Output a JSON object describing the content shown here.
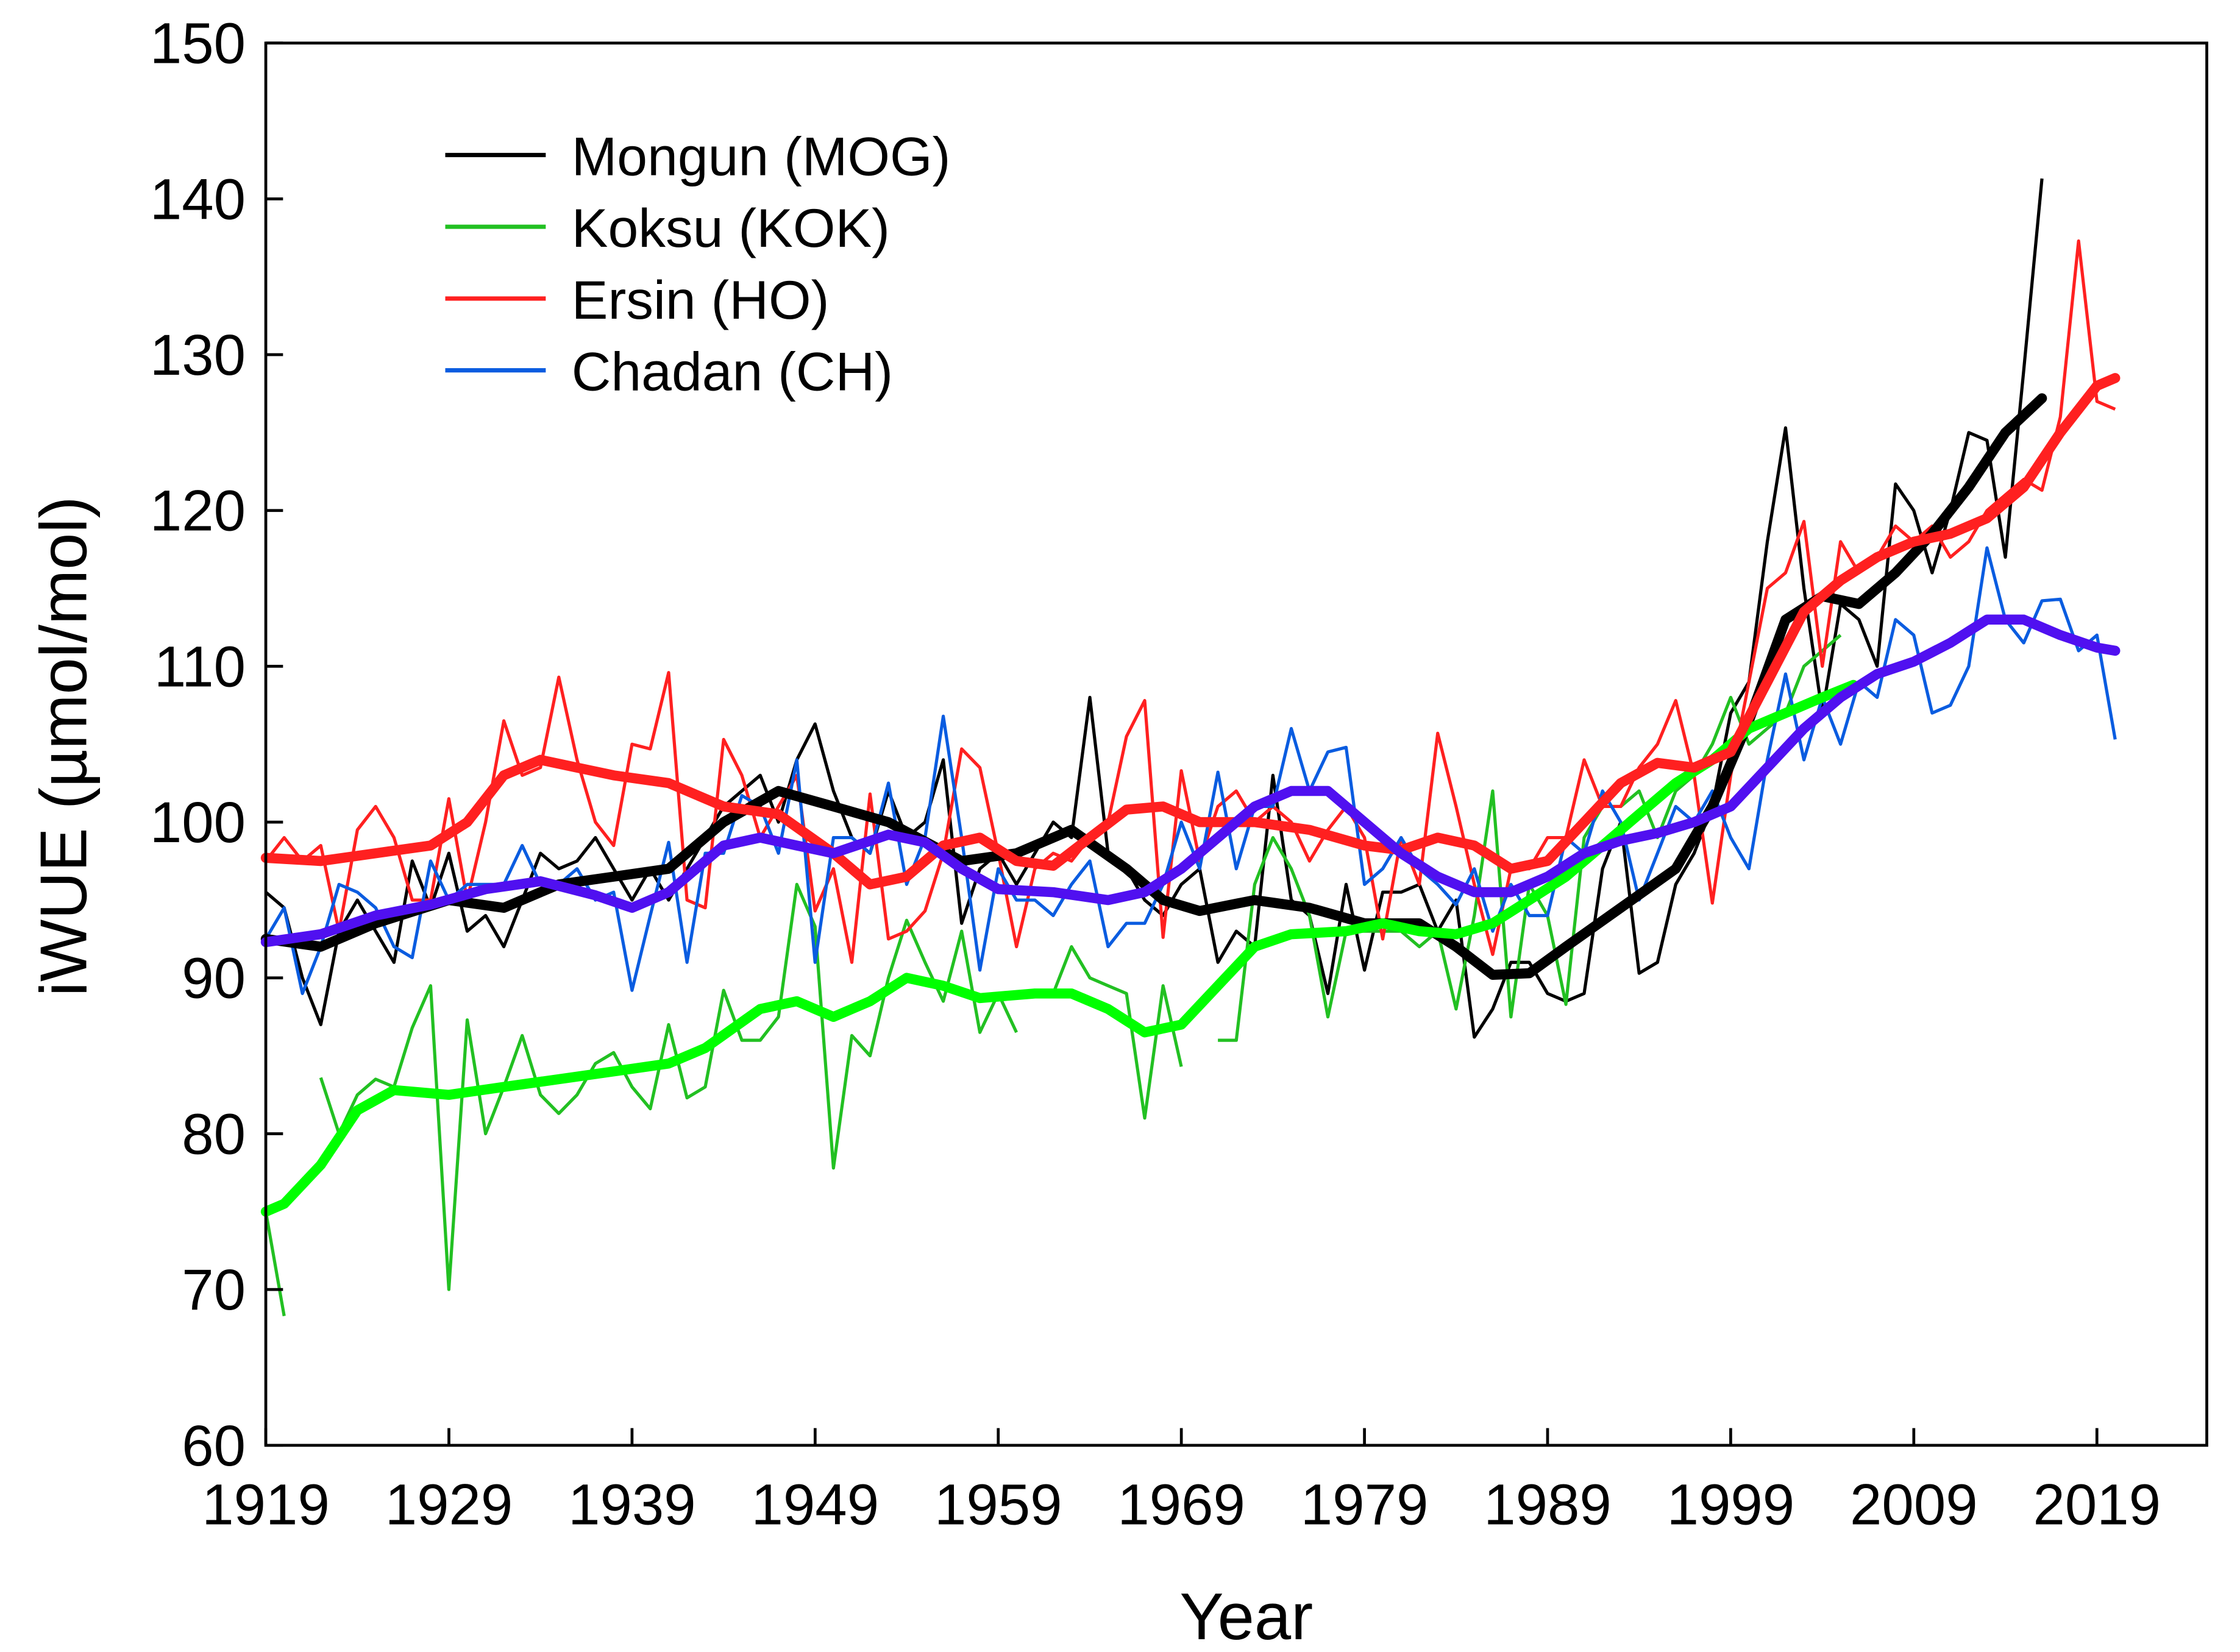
{
  "chart_data": {
    "type": "line",
    "title": "",
    "xlabel": "Year",
    "ylabel": "iWUE (µmol/mol)",
    "xlim": [
      1919,
      2025
    ],
    "ylim": [
      60,
      150
    ],
    "xticks": [
      1919,
      1929,
      1939,
      1949,
      1959,
      1969,
      1979,
      1989,
      1999,
      2009,
      2019
    ],
    "yticks": [
      60,
      70,
      80,
      90,
      100,
      110,
      120,
      130,
      140,
      150
    ],
    "grid": false,
    "legend_position": "top-left",
    "series": [
      {
        "name": "Mongun (MOG)",
        "color": "#000000",
        "smooth_color": "#000000",
        "start_year": 1919,
        "values": [
          95.5,
          94.5,
          90,
          87,
          93,
          95,
          93,
          91,
          97.5,
          94.5,
          98,
          93,
          94,
          92,
          95,
          98,
          97,
          97.5,
          99,
          97,
          95,
          97,
          95,
          97,
          99,
          101,
          102,
          103,
          100,
          104,
          106.3,
          102,
          99,
          98,
          102,
          99,
          100,
          104,
          93.5,
          97,
          98,
          96,
          98,
          100,
          99,
          108,
          98,
          97,
          95,
          94,
          96,
          97,
          91,
          93,
          92,
          103,
          95,
          94,
          89,
          96,
          90.5,
          95.5,
          95.5,
          96,
          93,
          95,
          86.2,
          88,
          91,
          91,
          89,
          88.5,
          89,
          97,
          100,
          90.3,
          91,
          96,
          98,
          101,
          107,
          109,
          118,
          125.3,
          115,
          107,
          114,
          113,
          110,
          121.7,
          120,
          116,
          120,
          125,
          124.5,
          117,
          129,
          141.3
        ],
        "smooth": [
          [
            1919,
            92.5
          ],
          [
            1922,
            92
          ],
          [
            1925,
            93.5
          ],
          [
            1929,
            95
          ],
          [
            1932,
            94.5
          ],
          [
            1935,
            96
          ],
          [
            1938,
            96.5
          ],
          [
            1941,
            97
          ],
          [
            1944,
            100
          ],
          [
            1947,
            102
          ],
          [
            1950,
            101
          ],
          [
            1953,
            100
          ],
          [
            1957,
            97.5
          ],
          [
            1960,
            98
          ],
          [
            1963,
            99.5
          ],
          [
            1966,
            97
          ],
          [
            1968,
            95
          ],
          [
            1970,
            94.3
          ],
          [
            1973,
            95
          ],
          [
            1976,
            94.5
          ],
          [
            1979,
            93.5
          ],
          [
            1982,
            93.5
          ],
          [
            1984,
            92
          ],
          [
            1986,
            90.2
          ],
          [
            1988,
            90.3
          ],
          [
            1990,
            92
          ],
          [
            1993,
            94.5
          ],
          [
            1996,
            97
          ],
          [
            1998,
            101
          ],
          [
            2000,
            106.5
          ],
          [
            2002,
            113
          ],
          [
            2004,
            114.5
          ],
          [
            2006,
            114
          ],
          [
            2008,
            116
          ],
          [
            2010,
            118.5
          ],
          [
            2012,
            121.5
          ],
          [
            2014,
            125
          ],
          [
            2016,
            127.2
          ]
        ]
      },
      {
        "name": "Koksu (KOK)",
        "color": "#22c022",
        "smooth_color": "#00ff00",
        "start_year": 1919,
        "values": [
          75,
          68.3,
          null,
          83.6,
          80,
          82.5,
          83.5,
          83,
          86.8,
          89.5,
          70,
          87.3,
          80,
          83,
          86.3,
          82.5,
          81.3,
          82.5,
          84.5,
          85.2,
          83,
          81.6,
          87,
          82.3,
          83,
          89.2,
          86,
          86,
          87.5,
          96,
          93.3,
          77.8,
          86.3,
          85,
          90,
          93.7,
          91,
          88.5,
          93,
          86.5,
          89,
          86.5,
          null,
          89,
          92,
          90,
          89.5,
          89,
          81,
          89.5,
          84.3,
          null,
          86,
          86,
          96,
          99,
          97,
          94,
          87.5,
          93,
          93,
          93,
          93,
          92,
          93,
          88,
          94,
          102,
          87.5,
          96,
          94,
          88.3,
          99,
          101,
          101,
          102,
          99,
          102,
          103,
          105,
          108,
          105,
          106,
          107,
          110,
          111,
          112
        ],
        "smooth": [
          [
            1919,
            75
          ],
          [
            1920,
            75.5
          ],
          [
            1922,
            78
          ],
          [
            1924,
            81.5
          ],
          [
            1926,
            82.8
          ],
          [
            1929,
            82.5
          ],
          [
            1932,
            83
          ],
          [
            1935,
            83.5
          ],
          [
            1938,
            84
          ],
          [
            1941,
            84.5
          ],
          [
            1943,
            85.5
          ],
          [
            1946,
            88
          ],
          [
            1948,
            88.5
          ],
          [
            1950,
            87.5
          ],
          [
            1952,
            88.5
          ],
          [
            1954,
            90
          ],
          [
            1956,
            89.5
          ],
          [
            1958,
            88.7
          ],
          [
            1961,
            89
          ],
          [
            1963,
            89
          ],
          [
            1965,
            88
          ],
          [
            1967,
            86.5
          ],
          [
            1969,
            87
          ],
          [
            1971,
            89.5
          ],
          [
            1973,
            92
          ],
          [
            1975,
            92.8
          ],
          [
            1978,
            93
          ],
          [
            1980,
            93.5
          ],
          [
            1982,
            93
          ],
          [
            1984,
            92.8
          ],
          [
            1986,
            93.5
          ],
          [
            1988,
            95
          ],
          [
            1990,
            96.5
          ],
          [
            1992,
            98.5
          ],
          [
            1994,
            100.5
          ],
          [
            1996,
            102.5
          ],
          [
            1998,
            104
          ],
          [
            2000,
            106
          ],
          [
            2002,
            107
          ],
          [
            2004,
            108
          ],
          [
            2005.7,
            108.8
          ]
        ]
      },
      {
        "name": "Ersin (HO)",
        "color": "#ff2020",
        "smooth_color": "#ff2020",
        "start_year": 1919,
        "values": [
          97.5,
          99,
          97.5,
          98.5,
          93,
          99.5,
          101,
          99,
          95,
          95,
          101.5,
          95,
          100,
          106.5,
          103,
          103.5,
          109.3,
          104,
          100,
          98.5,
          105,
          104.7,
          109.6,
          95,
          94.5,
          105.3,
          103,
          99,
          101,
          103,
          94.3,
          97,
          91,
          101.8,
          92.5,
          93,
          94.3,
          98,
          104.7,
          103.5,
          98,
          92,
          97,
          98,
          97.5,
          99,
          100,
          105.5,
          107.8,
          92.6,
          103.3,
          97.5,
          101,
          102,
          100,
          101,
          100,
          97.5,
          99.5,
          101,
          99,
          92.5,
          99,
          96,
          105.7,
          101,
          96,
          91.5,
          97,
          97,
          99,
          99,
          104,
          101,
          101,
          103.5,
          105,
          107.8,
          103,
          94.8,
          103,
          109,
          115,
          116,
          119.3,
          110,
          118,
          116,
          117,
          119,
          118,
          119,
          117,
          118,
          120,
          121,
          122,
          121.3,
          126,
          137.3,
          127,
          126.5
        ],
        "smooth": [
          [
            1919,
            97.7
          ],
          [
            1922,
            97.5
          ],
          [
            1925,
            98
          ],
          [
            1928,
            98.5
          ],
          [
            1930,
            100
          ],
          [
            1932,
            103
          ],
          [
            1934,
            104
          ],
          [
            1936,
            103.5
          ],
          [
            1938,
            103
          ],
          [
            1941,
            102.5
          ],
          [
            1944,
            101
          ],
          [
            1947,
            100.5
          ],
          [
            1950,
            98
          ],
          [
            1952,
            96
          ],
          [
            1954,
            96.5
          ],
          [
            1956,
            98.5
          ],
          [
            1958,
            99
          ],
          [
            1960,
            97.5
          ],
          [
            1962,
            97.2
          ],
          [
            1964,
            99
          ],
          [
            1966,
            100.8
          ],
          [
            1968,
            101
          ],
          [
            1970,
            100
          ],
          [
            1973,
            100
          ],
          [
            1976,
            99.5
          ],
          [
            1979,
            98.5
          ],
          [
            1981,
            98.2
          ],
          [
            1983,
            99
          ],
          [
            1985,
            98.5
          ],
          [
            1987,
            97
          ],
          [
            1989,
            97.5
          ],
          [
            1991,
            100
          ],
          [
            1993,
            102.5
          ],
          [
            1995,
            103.8
          ],
          [
            1997,
            103.5
          ],
          [
            1999,
            104.5
          ],
          [
            2001,
            109
          ],
          [
            2003,
            113.5
          ],
          [
            2005,
            115.5
          ],
          [
            2007,
            117
          ],
          [
            2009,
            118
          ],
          [
            2011,
            118.5
          ],
          [
            2013,
            119.5
          ],
          [
            2015,
            121.5
          ],
          [
            2017,
            125
          ],
          [
            2019,
            128
          ],
          [
            2020,
            128.5
          ]
        ]
      },
      {
        "name": "Chadan (CH)",
        "color": "#0a5ce0",
        "smooth_color": "#5010f0",
        "start_year": 1919,
        "values": [
          92.5,
          94.5,
          89,
          92,
          96,
          95.5,
          94.5,
          92,
          91.3,
          97.5,
          95,
          96,
          96,
          96,
          98.5,
          96,
          96,
          97,
          95,
          95.5,
          89.2,
          94,
          98.7,
          91,
          98,
          98,
          101.7,
          101,
          98,
          104,
          91,
          99,
          99,
          98,
          102.5,
          96,
          99,
          106.8,
          99,
          90.5,
          97,
          95,
          95,
          94,
          96,
          97.5,
          92,
          93.5,
          93.5,
          96,
          100,
          97,
          103.2,
          97,
          101,
          101,
          106,
          102,
          104.5,
          104.8,
          96,
          97,
          99,
          97,
          96,
          94.7,
          97,
          93,
          96,
          94,
          94,
          99,
          98,
          102,
          100,
          95,
          98,
          101,
          100,
          102,
          99,
          97,
          104,
          109.5,
          104,
          108,
          105,
          109,
          108,
          113,
          112,
          107,
          107.5,
          110,
          117.6,
          113,
          111.5,
          114.2,
          114.3,
          111,
          112,
          105.3
        ],
        "smooth": [
          [
            1919,
            92.3
          ],
          [
            1922,
            92.8
          ],
          [
            1925,
            94
          ],
          [
            1928,
            94.7
          ],
          [
            1931,
            95.7
          ],
          [
            1934,
            96.2
          ],
          [
            1937,
            95.3
          ],
          [
            1939,
            94.5
          ],
          [
            1941,
            95.5
          ],
          [
            1944,
            98.5
          ],
          [
            1946,
            99
          ],
          [
            1948,
            98.5
          ],
          [
            1950,
            98
          ],
          [
            1953,
            99.2
          ],
          [
            1955,
            98.7
          ],
          [
            1957,
            97
          ],
          [
            1959,
            95.7
          ],
          [
            1962,
            95.5
          ],
          [
            1965,
            95
          ],
          [
            1967,
            95.5
          ],
          [
            1969,
            97
          ],
          [
            1971,
            99
          ],
          [
            1973,
            101
          ],
          [
            1975,
            102
          ],
          [
            1977,
            102
          ],
          [
            1979,
            100
          ],
          [
            1981,
            98
          ],
          [
            1983,
            96.5
          ],
          [
            1985,
            95.5
          ],
          [
            1987,
            95.5
          ],
          [
            1989,
            96.5
          ],
          [
            1991,
            98
          ],
          [
            1993,
            98.8
          ],
          [
            1995,
            99.3
          ],
          [
            1997,
            100
          ],
          [
            1999,
            101
          ],
          [
            2001,
            103.5
          ],
          [
            2003,
            106
          ],
          [
            2005,
            108
          ],
          [
            2007,
            109.5
          ],
          [
            2009,
            110.3
          ],
          [
            2011,
            111.5
          ],
          [
            2013,
            113
          ],
          [
            2015,
            113
          ],
          [
            2017,
            112
          ],
          [
            2019,
            111.2
          ],
          [
            2020,
            111
          ]
        ]
      }
    ]
  }
}
